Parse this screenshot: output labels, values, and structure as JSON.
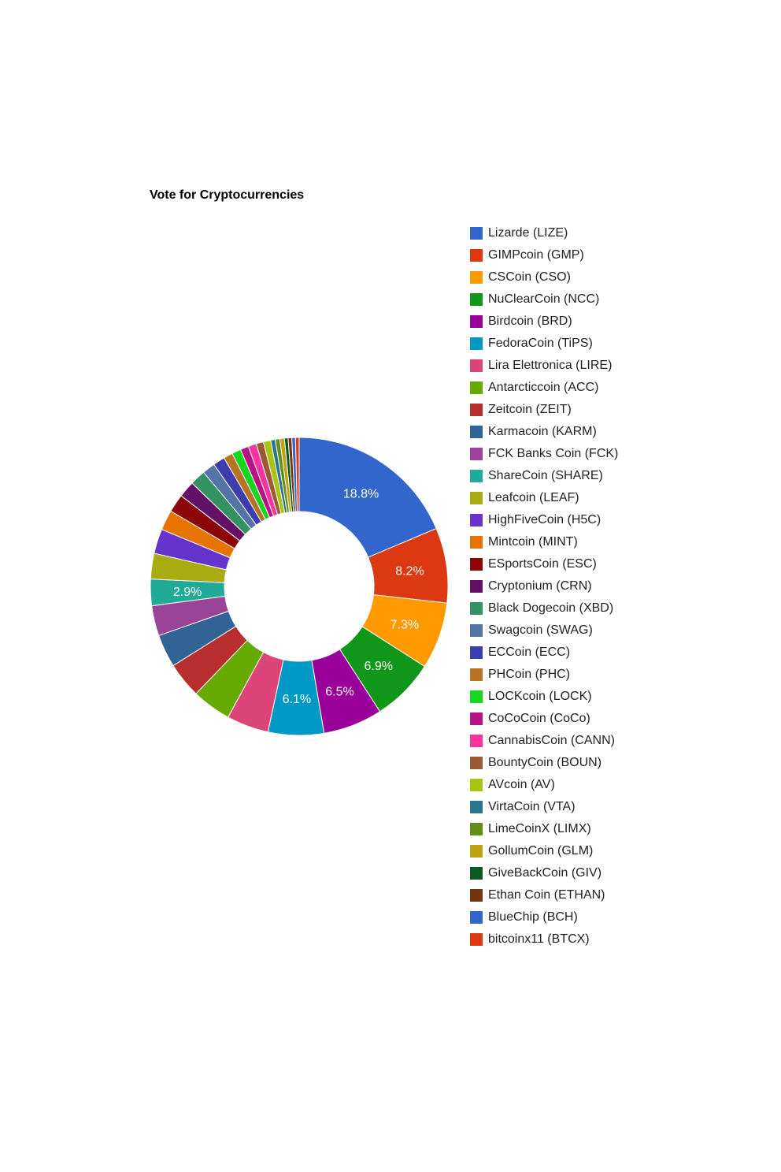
{
  "chart_data": {
    "type": "pie",
    "donut": true,
    "title": "Vote for Cryptocurrencies",
    "legend_position": "right",
    "slice_label_format": "percent",
    "slices": [
      {
        "label": "Lizarde (LIZE)",
        "value": 18.8,
        "color": "#3366cc",
        "shown_label": "18.8%"
      },
      {
        "label": "GIMPcoin (GMP)",
        "value": 8.2,
        "color": "#dc3912",
        "shown_label": "8.2%"
      },
      {
        "label": "CSCoin (CSO)",
        "value": 7.3,
        "color": "#ff9900",
        "shown_label": "7.3%"
      },
      {
        "label": "NuClearCoin (NCC)",
        "value": 6.9,
        "color": "#109618",
        "shown_label": "6.9%"
      },
      {
        "label": "Birdcoin (BRD)",
        "value": 6.5,
        "color": "#990099",
        "shown_label": "6.5%"
      },
      {
        "label": "FedoraCoin (TiPS)",
        "value": 6.1,
        "color": "#0099c6",
        "shown_label": "6.1%"
      },
      {
        "label": "Lira Elettronica (LIRE)",
        "value": 4.6,
        "color": "#dd4477"
      },
      {
        "label": "Antarcticcoin (ACC)",
        "value": 4.3,
        "color": "#66aa00"
      },
      {
        "label": "Zeitcoin (ZEIT)",
        "value": 3.9,
        "color": "#b82e2e"
      },
      {
        "label": "Karmacoin (KARM)",
        "value": 3.6,
        "color": "#316395"
      },
      {
        "label": "FCK Banks Coin (FCK)",
        "value": 3.3,
        "color": "#994499"
      },
      {
        "label": "ShareCoin (SHARE)",
        "value": 2.9,
        "color": "#22aa99",
        "shown_label": "2.9%"
      },
      {
        "label": "Leafcoin (LEAF)",
        "value": 2.8,
        "color": "#aaaa11"
      },
      {
        "label": "HighFiveCoin (H5C)",
        "value": 2.7,
        "color": "#6633cc"
      },
      {
        "label": "Mintcoin (MINT)",
        "value": 2.2,
        "color": "#e67300"
      },
      {
        "label": "ESportsCoin (ESC)",
        "value": 2.0,
        "color": "#8b0707"
      },
      {
        "label": "Cryptonium (CRN)",
        "value": 1.8,
        "color": "#651067"
      },
      {
        "label": "Black Dogecoin (XBD)",
        "value": 1.7,
        "color": "#329262"
      },
      {
        "label": "Swagcoin (SWAG)",
        "value": 1.4,
        "color": "#5574a6"
      },
      {
        "label": "ECCoin (ECC)",
        "value": 1.3,
        "color": "#3b3eac"
      },
      {
        "label": "PHCoin (PHC)",
        "value": 1.0,
        "color": "#b77322"
      },
      {
        "label": "LOCKcoin (LOCK)",
        "value": 1.0,
        "color": "#16d620"
      },
      {
        "label": "CoCoCoin (CoCo)",
        "value": 0.9,
        "color": "#b91383"
      },
      {
        "label": "CannabisCoin (CANN)",
        "value": 0.9,
        "color": "#f4359e"
      },
      {
        "label": "BountyCoin (BOUN)",
        "value": 0.8,
        "color": "#9c5935"
      },
      {
        "label": "AVcoin (AV)",
        "value": 0.8,
        "color": "#a9c413"
      },
      {
        "label": "VirtaCoin (VTA)",
        "value": 0.5,
        "color": "#2a778d"
      },
      {
        "label": "LimeCoinX (LIMX)",
        "value": 0.5,
        "color": "#668d1c"
      },
      {
        "label": "GollumCoin (GLM)",
        "value": 0.5,
        "color": "#bea413"
      },
      {
        "label": "GiveBackCoin (GIV)",
        "value": 0.4,
        "color": "#0c5922"
      },
      {
        "label": "Ethan Coin (ETHAN)",
        "value": 0.4,
        "color": "#743411"
      },
      {
        "label": "BlueChip (BCH)",
        "value": 0.4,
        "color": "#3366cc"
      },
      {
        "label": "bitcoinx11 (BTCX)",
        "value": 0.4,
        "color": "#dc3912"
      }
    ]
  }
}
